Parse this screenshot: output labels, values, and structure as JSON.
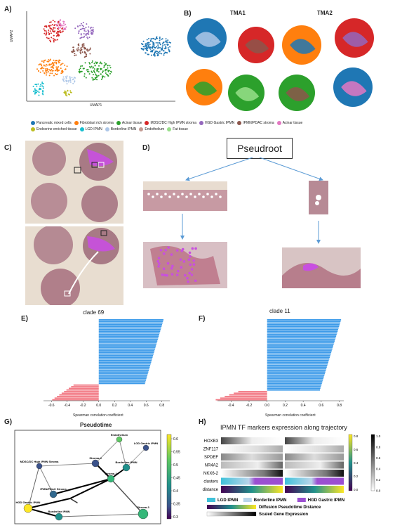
{
  "panels": {
    "a": "A)",
    "b": "B)",
    "c": "C)",
    "d": "D)",
    "e": "E)",
    "f": "F)",
    "g": "G)",
    "h": "H)"
  },
  "umap": {
    "xlabel": "UMAP1",
    "ylabel": "UMAP2"
  },
  "legend": {
    "row1": [
      {
        "label": "Pancreatic mixed cells",
        "color": "#1f77b4"
      },
      {
        "label": "Fibroblast rich stroma",
        "color": "#ff7f0e"
      },
      {
        "label": "Acinar tissue",
        "color": "#2ca02c"
      },
      {
        "label": "MDSC/DC High IPMN stroma",
        "color": "#d62728"
      },
      {
        "label": "HGD Gastric IPMN",
        "color": "#9467bd"
      },
      {
        "label": "IPMN/PDAC stroma",
        "color": "#8c564b"
      },
      {
        "label": "Acinar tissue",
        "color": "#e377c2"
      }
    ],
    "row2": [
      {
        "label": "Endocrine enriched tissue",
        "color": "#bcbd22"
      },
      {
        "label": "LGD IPMN",
        "color": "#17becf"
      },
      {
        "label": "Borderline IPMN",
        "color": "#aec7e8"
      },
      {
        "label": "Endothelium",
        "color": "#c49c94"
      },
      {
        "label": "Fat tissue",
        "color": "#98df8a"
      }
    ]
  },
  "tma": {
    "tma1": "TMA1",
    "tma2": "TMA2"
  },
  "pseudoroot": "Pseudroot",
  "clade_e": {
    "title": "clade 69",
    "xlabel": "Spearman correlation coefficient",
    "ticks": [
      "-0.6",
      "-0.4",
      "-0.2",
      "0.0",
      "0.2",
      "0.4",
      "0.6",
      "0.8"
    ]
  },
  "clade_f": {
    "title": "clade 11",
    "xlabel": "Spearman correlation coefficient",
    "ticks": [
      "-0.4",
      "-0.2",
      "0.0",
      "0.2",
      "0.4",
      "0.6",
      "0.8"
    ]
  },
  "pseudotime": {
    "title": "Pseudotime",
    "colorbar_ticks": [
      "0.6",
      "0.55",
      "0.5",
      "0.45",
      "0.4",
      "0.35",
      "0.3"
    ],
    "nodes": [
      {
        "label": "Endothelium"
      },
      {
        "label": "Stroma-4"
      },
      {
        "label": "Borderline IPMN"
      },
      {
        "label": "HGD Gastric IPMN"
      },
      {
        "label": "MDSC/DC High IPMN Stroma"
      },
      {
        "label": "IPMN/PDAC Stroma"
      },
      {
        "label": "Stroma-2"
      },
      {
        "label": "LGD Gastric IPMN"
      },
      {
        "label": "Borderline IPMN"
      },
      {
        "label": "Stroma-3"
      }
    ]
  },
  "heatmap": {
    "title": "IPMN TF markers expression along trajectory",
    "rows": [
      "HOXB3",
      "ZNF117",
      "SPDEF",
      "NR4A2",
      "NKX6-2",
      "clusters",
      "distance"
    ],
    "colorbar1": [
      "0.8",
      "0.6",
      "0.4",
      "0.2",
      "0.0"
    ],
    "colorbar2": [
      "1.0",
      "0.8",
      "0.6",
      "0.4",
      "0.2",
      "0.0"
    ],
    "legend": [
      {
        "label": "LGD IPMN",
        "color": "#3fc1d9"
      },
      {
        "label": "Borderline IPMN",
        "color": "#b9d5ea"
      },
      {
        "label": "HGD Gastric IPMN",
        "color": "#9b4fd1"
      }
    ],
    "bar1_label": "Diffusion Pseudotime Distance",
    "bar2_label": "Scaled Gene Expression"
  }
}
